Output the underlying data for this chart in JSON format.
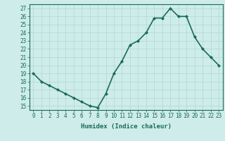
{
  "x": [
    0,
    1,
    2,
    3,
    4,
    5,
    6,
    7,
    8,
    9,
    10,
    11,
    12,
    13,
    14,
    15,
    16,
    17,
    18,
    19,
    20,
    21,
    22,
    23
  ],
  "y": [
    19,
    18,
    17.5,
    17,
    16.5,
    16,
    15.5,
    15,
    14.8,
    16.5,
    19,
    20.5,
    22.5,
    23,
    24,
    25.8,
    25.8,
    27,
    26,
    26,
    23.5,
    22,
    21,
    20
  ],
  "line_color": "#1a6b5a",
  "marker": "D",
  "marker_size": 2,
  "background_color": "#ceecea",
  "grid_color": "#aed8d4",
  "xlabel": "Humidex (Indice chaleur)",
  "xlim": [
    -0.5,
    23.5
  ],
  "ylim": [
    14.5,
    27.5
  ],
  "yticks": [
    15,
    16,
    17,
    18,
    19,
    20,
    21,
    22,
    23,
    24,
    25,
    26,
    27
  ],
  "xticks": [
    0,
    1,
    2,
    3,
    4,
    5,
    6,
    7,
    8,
    9,
    10,
    11,
    12,
    13,
    14,
    15,
    16,
    17,
    18,
    19,
    20,
    21,
    22,
    23
  ],
  "xtick_labels": [
    "0",
    "1",
    "2",
    "3",
    "4",
    "5",
    "6",
    "7",
    "8",
    "9",
    "10",
    "11",
    "12",
    "13",
    "14",
    "15",
    "16",
    "17",
    "18",
    "19",
    "20",
    "21",
    "22",
    "23"
  ],
  "linewidth": 1.2,
  "tick_fontsize": 5.5,
  "xlabel_fontsize": 6.5
}
